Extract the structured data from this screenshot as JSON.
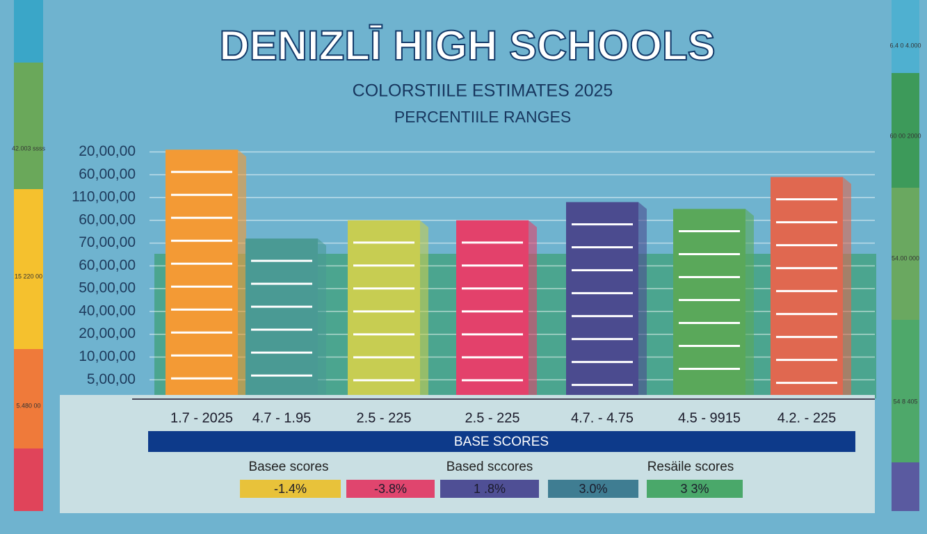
{
  "chart_data": {
    "type": "bar",
    "title": "DENIZLĪ HIGH SCHOOLS",
    "subtitle": "COLORSTIILE ESTIMATES 2025",
    "subtitle2": "PERCENTIILE RANGES",
    "categories": [
      "1.7 - 2025",
      "4.7 - 1.95",
      "2.5 - 225",
      "2.5 - 225",
      "4.7. - 4.75",
      "4.5 - 9915",
      "4.2. - 225"
    ],
    "values": [
      11.1,
      7.2,
      8.0,
      8.0,
      8.8,
      8.5,
      9.9
    ],
    "colors": [
      "#f39a35",
      "#4a9a94",
      "#c7cd52",
      "#e3416b",
      "#4b4b8f",
      "#5aa85a",
      "#e06850"
    ],
    "ylim": [
      0,
      11.2
    ],
    "yticks": [
      {
        "value": 1,
        "label": "5,00,00"
      },
      {
        "value": 2,
        "label": "10,00,00"
      },
      {
        "value": 3,
        "label": "20,00,00"
      },
      {
        "value": 4,
        "label": "40,00,00"
      },
      {
        "value": 5,
        "label": "50,00,00"
      },
      {
        "value": 6,
        "label": "60,00,00"
      },
      {
        "value": 7,
        "label": "70,00,00"
      },
      {
        "value": 8,
        "label": "60,00,00"
      },
      {
        "value": 9,
        "label": "110,00,00"
      },
      {
        "value": 10,
        "label": "60,00,00"
      },
      {
        "value": 11,
        "label": "20,00,00"
      }
    ],
    "grid": true,
    "banner": "BASE SCORES",
    "legend_headings": [
      "Basee scores",
      "Based sccores",
      "Resäile scores"
    ],
    "legend_chips": [
      {
        "label": "-1.4%",
        "color": "#e8c23a"
      },
      {
        "label": "-3.8%",
        "color": "#e0456e"
      },
      {
        "label": "1 .8%",
        "color": "#4f4f95"
      },
      {
        "label": "3.0%",
        "color": "#3f7d92"
      },
      {
        "label": "3 3%",
        "color": "#4aa86a"
      }
    ],
    "side_labels_left": [
      "42.003 ssss",
      "15 220 00",
      "5.480 00"
    ],
    "side_labels_right": [
      "6.4 0 4.000",
      "60 00 2000",
      "54.00 000",
      "54 8 405"
    ]
  }
}
